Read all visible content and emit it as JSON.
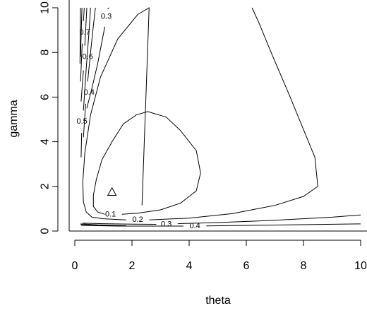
{
  "chart_data": {
    "type": "contour",
    "xlabel": "theta",
    "ylabel": "gamma",
    "xlim": [
      0,
      10
    ],
    "ylim": [
      0,
      10
    ],
    "x_ticks": [
      "0",
      "2",
      "4",
      "6",
      "8",
      "10"
    ],
    "y_ticks": [
      "0",
      "2",
      "4",
      "6",
      "8",
      "10"
    ],
    "grid": false,
    "levels": [
      {
        "level": "0.1",
        "label": {
          "text": "0.1",
          "x": 1.25,
          "y": 0.75
        },
        "points": [
          [
            1.65,
            0.75
          ],
          [
            2.2,
            0.8
          ],
          [
            3.0,
            0.95
          ],
          [
            3.7,
            1.25
          ],
          [
            4.25,
            1.8
          ],
          [
            4.4,
            2.6
          ],
          [
            4.25,
            3.6
          ],
          [
            3.7,
            4.5
          ],
          [
            3.2,
            5.1
          ],
          [
            2.55,
            5.35
          ],
          [
            2.15,
            5.2
          ],
          [
            1.7,
            4.8
          ],
          [
            1.3,
            4.0
          ],
          [
            0.95,
            3.2
          ],
          [
            0.75,
            2.3
          ],
          [
            0.65,
            1.6
          ],
          [
            0.65,
            1.1
          ],
          [
            0.8,
            0.85
          ],
          [
            1.05,
            0.75
          ]
        ]
      },
      {
        "level": "0.2",
        "label": {
          "text": "0.2",
          "x": 2.2,
          "y": 0.5
        },
        "points": [
          [
            2.35,
            1.15
          ],
          [
            2.6,
            10.0
          ],
          [
            2.2,
            9.7
          ],
          [
            1.5,
            8.6
          ],
          [
            0.9,
            6.9
          ],
          [
            0.55,
            5.2
          ],
          [
            0.35,
            3.5
          ],
          [
            0.28,
            2.2
          ],
          [
            0.3,
            1.3
          ],
          [
            0.4,
            0.85
          ],
          [
            0.6,
            0.62
          ],
          [
            1.0,
            0.55
          ],
          [
            1.8,
            0.5
          ]
        ]
      },
      {
        "level": "0.2-right",
        "label": null,
        "points": [
          [
            2.6,
            0.5
          ],
          [
            4.0,
            0.58
          ],
          [
            5.5,
            0.78
          ],
          [
            7.0,
            1.15
          ],
          [
            8.0,
            1.55
          ],
          [
            8.5,
            2.0
          ],
          [
            8.4,
            3.3
          ],
          [
            7.5,
            6.1
          ],
          [
            6.9,
            7.9
          ],
          [
            6.45,
            9.3
          ],
          [
            6.2,
            10.0
          ]
        ]
      },
      {
        "level": "0.3",
        "label": {
          "text": "0.3",
          "x": 3.2,
          "y": 0.3
        },
        "points": [
          [
            0.28,
            0.35
          ],
          [
            1.0,
            0.33
          ],
          [
            2.0,
            0.31
          ],
          [
            2.85,
            0.3
          ]
        ]
      },
      {
        "level": "0.3-right",
        "label": null,
        "points": [
          [
            3.6,
            0.33
          ],
          [
            5.0,
            0.38
          ],
          [
            7.0,
            0.48
          ],
          [
            9.0,
            0.62
          ],
          [
            10.0,
            0.72
          ]
        ]
      },
      {
        "level": "0.4",
        "label": {
          "text": "0.4",
          "x": 4.2,
          "y": 0.22
        },
        "points": [
          [
            0.22,
            0.25
          ],
          [
            1.5,
            0.22
          ],
          [
            3.8,
            0.22
          ]
        ]
      },
      {
        "level": "0.4-right",
        "label": null,
        "points": [
          [
            4.6,
            0.23
          ],
          [
            7.0,
            0.27
          ],
          [
            10.0,
            0.32
          ]
        ]
      },
      {
        "level": "0.3-upper",
        "label": {
          "text": "0.3",
          "x": 1.1,
          "y": 9.6
        },
        "points": [
          [
            0.42,
            5.5
          ],
          [
            0.6,
            6.4
          ],
          [
            0.8,
            7.5
          ],
          [
            0.95,
            8.5
          ],
          [
            1.05,
            9.15
          ]
        ]
      },
      {
        "level": "0.3-upper-b",
        "label": null,
        "points": [
          [
            1.15,
            9.95
          ],
          [
            1.2,
            10.0
          ]
        ]
      },
      {
        "level": "0.4-upper",
        "label": {
          "text": "0.4",
          "x": 0.5,
          "y": 6.2
        },
        "points": [
          [
            0.3,
            4.2
          ],
          [
            0.38,
            5.7
          ]
        ]
      },
      {
        "level": "0.4-upper-b",
        "label": null,
        "points": [
          [
            0.45,
            6.7
          ],
          [
            0.55,
            8.0
          ],
          [
            0.65,
            9.2
          ],
          [
            0.72,
            10.0
          ]
        ]
      },
      {
        "level": "0.5",
        "label": {
          "text": "0.5",
          "x": 0.25,
          "y": 4.9
        },
        "points": [
          [
            0.22,
            3.3
          ],
          [
            0.24,
            4.4
          ]
        ]
      },
      {
        "level": "0.5-b",
        "label": null,
        "points": [
          [
            0.3,
            5.4
          ],
          [
            0.4,
            7.3
          ],
          [
            0.5,
            9.0
          ],
          [
            0.55,
            10.0
          ]
        ]
      },
      {
        "level": "0.6",
        "label": {
          "text": "0.6",
          "x": 0.45,
          "y": 7.8
        },
        "points": [
          [
            0.22,
            5.8
          ],
          [
            0.3,
            7.2
          ]
        ]
      },
      {
        "level": "0.6-b",
        "label": null,
        "points": [
          [
            0.35,
            8.3
          ],
          [
            0.42,
            10.0
          ]
        ]
      },
      {
        "level": "0.7",
        "label": {
          "text": "0.7",
          "x": 0.35,
          "y": 8.9
        },
        "points": [
          [
            0.2,
            6.7
          ],
          [
            0.26,
            8.4
          ]
        ]
      },
      {
        "level": "0.7-b",
        "label": null,
        "points": [
          [
            0.3,
            9.4
          ],
          [
            0.33,
            10.0
          ]
        ]
      },
      {
        "level": "inner-a",
        "label": null,
        "points": [
          [
            0.18,
            7.5
          ],
          [
            0.2,
            10.0
          ]
        ]
      },
      {
        "level": "inner-b",
        "label": null,
        "points": [
          [
            0.2,
            7.8
          ],
          [
            0.25,
            10.0
          ]
        ]
      },
      {
        "level": "bottom-a",
        "label": null,
        "points": [
          [
            0.2,
            0.32
          ],
          [
            0.8,
            0.28
          ],
          [
            1.8,
            0.24
          ]
        ]
      },
      {
        "level": "bottom-b",
        "label": null,
        "points": [
          [
            0.2,
            0.3
          ],
          [
            0.9,
            0.26
          ],
          [
            1.4,
            0.25
          ]
        ]
      }
    ],
    "marker": {
      "type": "triangle",
      "x": 1.3,
      "y": 1.75
    }
  }
}
